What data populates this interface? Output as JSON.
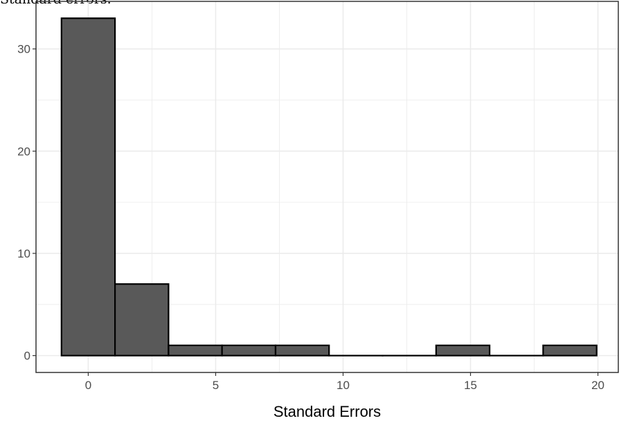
{
  "caption_fragment": "Standard errors.",
  "chart_data": {
    "type": "bar",
    "subtype": "histogram",
    "title": "",
    "xlabel": "Standard Errors",
    "ylabel": "",
    "bins": [
      {
        "start": -1.05,
        "end": 1.05,
        "count": 33
      },
      {
        "start": 1.05,
        "end": 3.15,
        "count": 7
      },
      {
        "start": 3.15,
        "end": 5.25,
        "count": 1
      },
      {
        "start": 5.25,
        "end": 7.35,
        "count": 1
      },
      {
        "start": 7.35,
        "end": 9.45,
        "count": 1
      },
      {
        "start": 9.45,
        "end": 11.55,
        "count": 0
      },
      {
        "start": 11.55,
        "end": 13.65,
        "count": 0
      },
      {
        "start": 13.65,
        "end": 15.75,
        "count": 1
      },
      {
        "start": 15.75,
        "end": 17.85,
        "count": 0
      },
      {
        "start": 17.85,
        "end": 19.95,
        "count": 1
      }
    ],
    "xlim": [
      -2.05,
      20.8
    ],
    "ylim": [
      -1.65,
      34.65
    ],
    "xticks": [
      0,
      5,
      10,
      15,
      20
    ],
    "yticks": [
      0,
      10,
      20,
      30
    ],
    "grid": true,
    "bar_fill": "#595959",
    "bar_outline": "#000000",
    "panel_border": "#333333",
    "grid_color": "#ebebeb"
  }
}
